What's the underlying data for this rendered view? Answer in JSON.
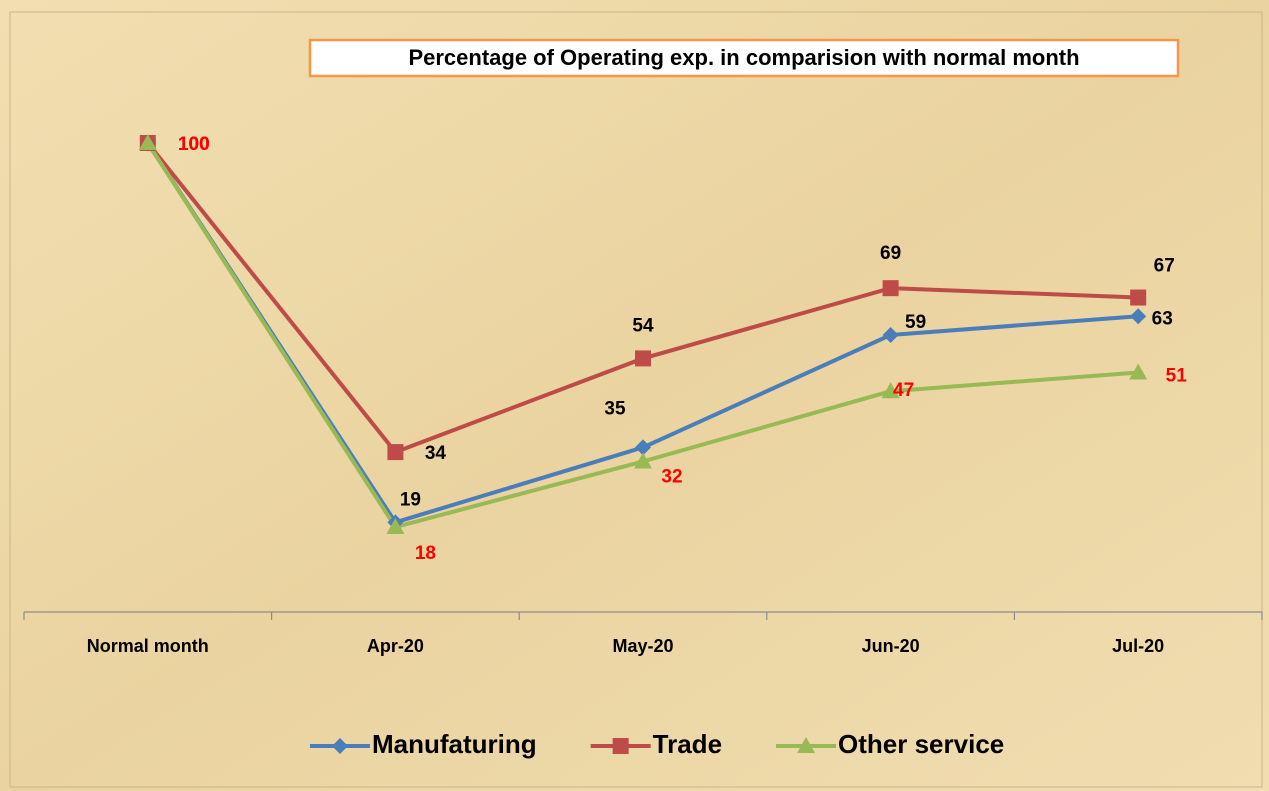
{
  "chart_data": {
    "type": "line",
    "title": "Percentage of Operating exp. in comparision with normal month",
    "categories": [
      "Normal month",
      "Apr-20",
      "May-20",
      "Jun-20",
      "Jul-20"
    ],
    "series": [
      {
        "name": "Manufaturing",
        "color": "#4a7ebb",
        "marker": "diamond",
        "label_color": "#000000",
        "values": [
          100,
          19,
          35,
          59,
          63
        ]
      },
      {
        "name": "Trade",
        "color": "#be4b48",
        "marker": "square",
        "label_color": "#000000",
        "values": [
          100,
          34,
          54,
          69,
          67
        ]
      },
      {
        "name": "Other service",
        "color": "#98b954",
        "marker": "triangle",
        "label_color": "#ff0000",
        "values": [
          100,
          18,
          32,
          47,
          51
        ]
      }
    ],
    "legend": "bottom"
  }
}
